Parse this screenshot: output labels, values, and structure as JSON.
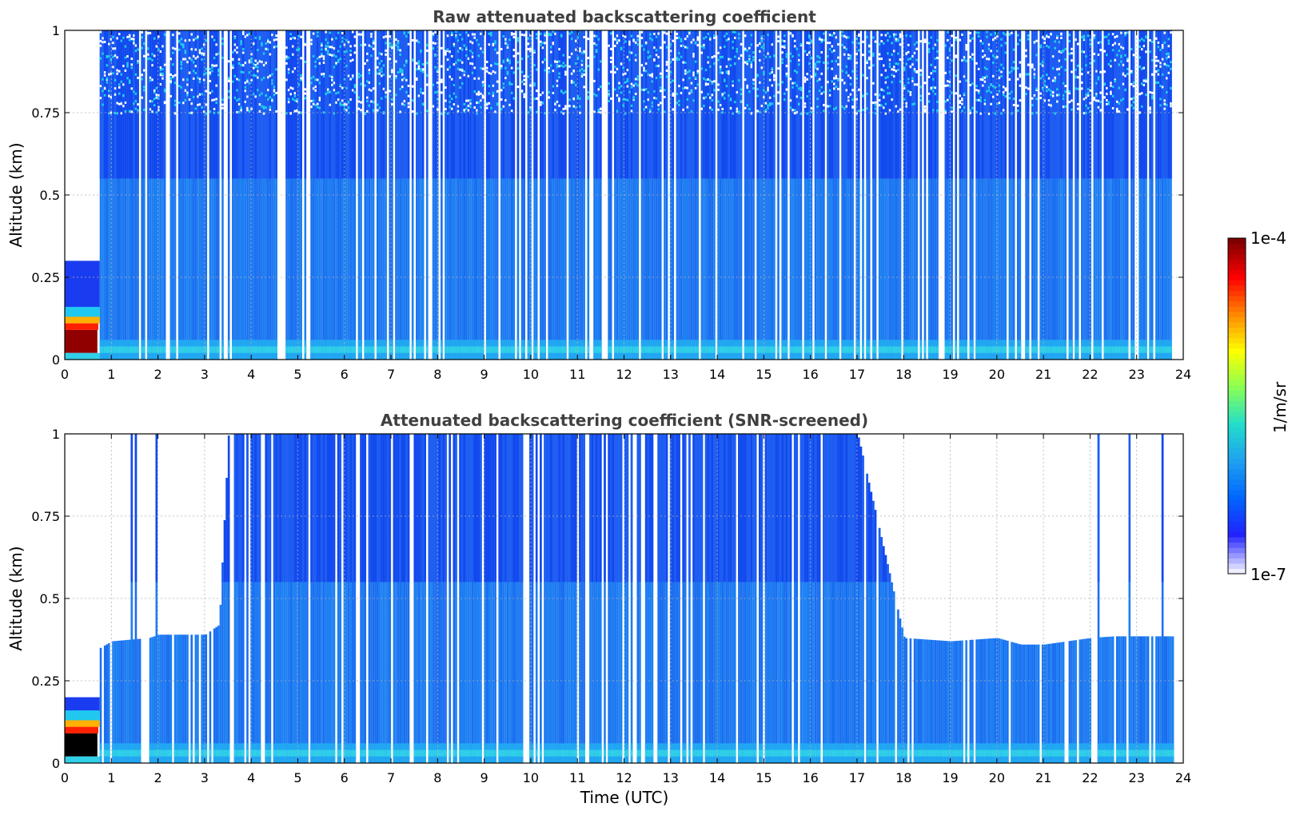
{
  "chart_data": [
    {
      "type": "heatmap",
      "title": "Raw attenuated backscattering coefficient",
      "xlabel": "",
      "ylabel": "Altitude (km)",
      "xlim": [
        0,
        24
      ],
      "ylim": [
        0,
        1
      ],
      "x_ticks": [
        "0",
        "1",
        "2",
        "3",
        "4",
        "5",
        "6",
        "7",
        "8",
        "9",
        "10",
        "11",
        "12",
        "13",
        "14",
        "15",
        "16",
        "17",
        "18",
        "19",
        "20",
        "21",
        "22",
        "23",
        "24"
      ],
      "y_ticks": [
        "0",
        "0.25",
        "0.5",
        "0.75",
        "1"
      ],
      "grid": true,
      "color_scale": "log",
      "features": {
        "high_backscatter_layer": {
          "time_range": [
            0.0,
            0.75
          ],
          "altitude_range": [
            0.0,
            0.15
          ],
          "level": "1e-4"
        },
        "data_gap_start_time": 0.75,
        "data_end_time": 23.8,
        "signal_to_top": true
      }
    },
    {
      "type": "heatmap",
      "title": "Attenuated backscattering coefficient (SNR-screened)",
      "xlabel": "Time (UTC)",
      "ylabel": "Altitude (km)",
      "xlim": [
        0,
        24
      ],
      "ylim": [
        0,
        1
      ],
      "x_ticks": [
        "0",
        "1",
        "2",
        "3",
        "4",
        "5",
        "6",
        "7",
        "8",
        "9",
        "10",
        "11",
        "12",
        "13",
        "14",
        "15",
        "16",
        "17",
        "18",
        "19",
        "20",
        "21",
        "22",
        "23",
        "24"
      ],
      "y_ticks": [
        "0",
        "0.25",
        "0.5",
        "0.75",
        "1"
      ],
      "grid": true,
      "color_scale": "log",
      "screened_top_altitude": {
        "times": [
          0.0,
          0.5,
          0.75,
          1.0,
          1.8,
          2.0,
          3.0,
          3.3,
          3.5,
          17.0,
          18.0,
          19.0,
          20.0,
          20.5,
          21.0,
          22.0,
          22.5,
          23.8
        ],
        "altitude_km": [
          0.2,
          0.2,
          0.35,
          0.37,
          0.38,
          0.39,
          0.39,
          0.42,
          1.0,
          1.0,
          0.38,
          0.37,
          0.38,
          0.36,
          0.36,
          0.38,
          0.385,
          0.385
        ]
      }
    }
  ],
  "colorbar": {
    "label": "1/m/sr",
    "max_label": "1e-4",
    "min_label": "1e-7",
    "colormap": [
      "#eeeeff",
      "#2222ff",
      "#0066ff",
      "#1ea0f0",
      "#22ddcc",
      "#88ff55",
      "#ffff00",
      "#ff8800",
      "#ff0000",
      "#800000"
    ]
  }
}
